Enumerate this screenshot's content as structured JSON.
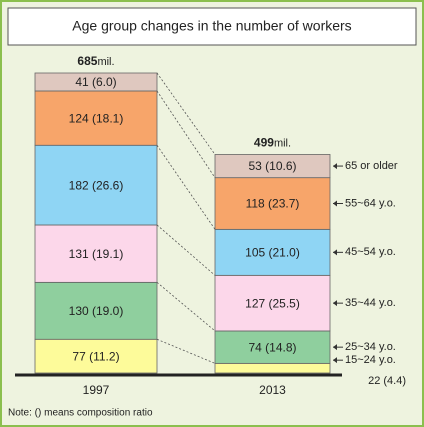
{
  "chart_data": {
    "type": "bar",
    "stacked": true,
    "title": "Age group changes in the number of workers",
    "categories": [
      "1997",
      "2013"
    ],
    "totals": [
      685,
      499
    ],
    "total_unit": "mil.",
    "series": [
      {
        "name": "15~24 y.o.",
        "color": "#fdfb9a",
        "values": [
          77,
          22
        ],
        "value_labels": [
          "77 (11.2)",
          "22 (4.4)"
        ]
      },
      {
        "name": "25~34 y.o.",
        "color": "#8fcf9e",
        "values": [
          130,
          74
        ],
        "value_labels": [
          "130 (19.0)",
          "74 (14.8)"
        ]
      },
      {
        "name": "35~44 y.o.",
        "color": "#fcd7ea",
        "values": [
          131,
          127
        ],
        "value_labels": [
          "131 (19.1)",
          "127 (25.5)"
        ]
      },
      {
        "name": "45~54 y.o.",
        "color": "#8fd5f4",
        "values": [
          182,
          105
        ],
        "value_labels": [
          "182 (26.6)",
          "105 (21.0)"
        ]
      },
      {
        "name": "55~64 y.o.",
        "color": "#f7a56a",
        "values": [
          124,
          118
        ],
        "value_labels": [
          "124 (18.1)",
          "118 (23.7)"
        ]
      },
      {
        "name": "65 or older",
        "color": "#dfc8bf",
        "values": [
          41,
          53
        ],
        "value_labels": [
          "41 (6.0)",
          "53 (10.6)"
        ]
      }
    ],
    "note": "Note: () means composition ratio"
  }
}
